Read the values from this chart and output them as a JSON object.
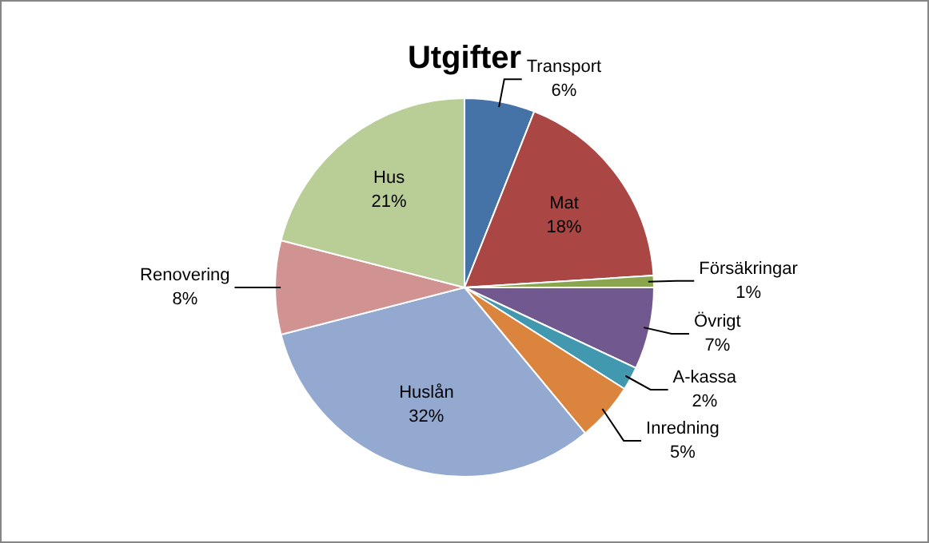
{
  "chart_data": {
    "type": "pie",
    "title": "Utgifter",
    "categories": [
      "Transport",
      "Mat",
      "Försäkringar",
      "Övrigt",
      "A-kassa",
      "Inredning",
      "Huslån",
      "Renovering",
      "Hus"
    ],
    "values": [
      6,
      18,
      1,
      7,
      2,
      5,
      32,
      8,
      21
    ],
    "value_labels": [
      "6%",
      "18%",
      "1%",
      "7%",
      "2%",
      "5%",
      "32%",
      "8%",
      "21%"
    ],
    "colors": [
      "#4572a7",
      "#aa4643",
      "#89a54e",
      "#71588f",
      "#4198af",
      "#db843d",
      "#93a9cf",
      "#d19392",
      "#b9cd96"
    ],
    "legend": false
  }
}
